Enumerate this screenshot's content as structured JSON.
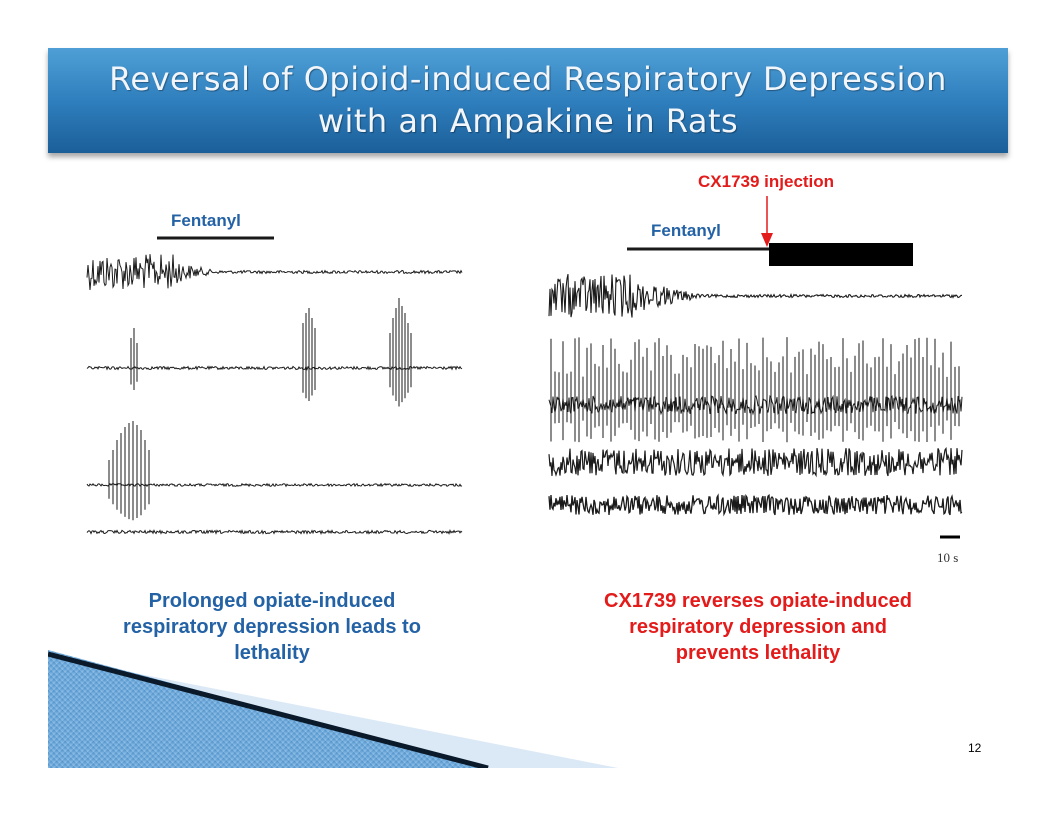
{
  "title": {
    "line1": "Reversal of Opioid-induced Respiratory Depression",
    "line2": "with an Ampakine in Rats"
  },
  "left_panel": {
    "drug_label": "Fentanyl",
    "caption": [
      "Prolonged opiate-induced",
      "respiratory depression leads to",
      "lethality"
    ]
  },
  "right_panel": {
    "drug_label": "Fentanyl",
    "injection_label": "CX1739 injection",
    "scale_label": "10 s",
    "caption": [
      "CX1739 reverses opiate-induced",
      "respiratory depression and",
      "prevents lethality"
    ]
  },
  "colors": {
    "title_bar": "#2f7fbe",
    "blue_text": "#2462a6",
    "red_text": "#e31b1b"
  },
  "page_number": "12"
}
